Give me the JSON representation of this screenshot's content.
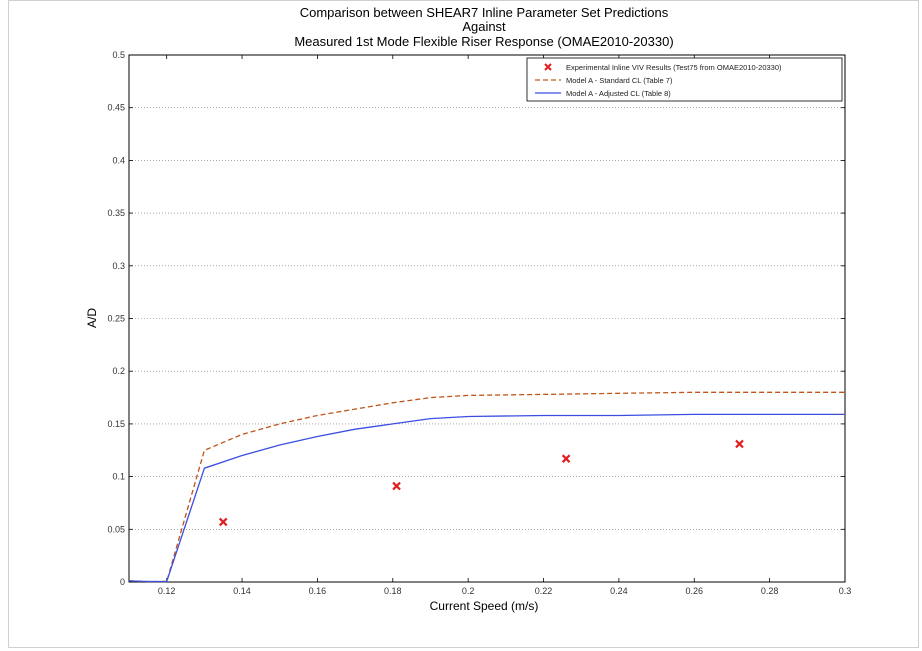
{
  "chart_data": {
    "type": "line",
    "title": [
      "Comparison between SHEAR7 Inline Parameter Set Predictions",
      "Against",
      "Measured 1st Mode Flexible Riser Response (OMAE2010-20330)"
    ],
    "xlabel": "Current Speed (m/s)",
    "ylabel": "A/D",
    "xlim": [
      0.11,
      0.3
    ],
    "ylim": [
      0,
      0.5
    ],
    "xticks": [
      "0.12",
      "0.14",
      "0.16",
      "0.18",
      "0.2",
      "0.22",
      "0.24",
      "0.26",
      "0.28",
      "0.3"
    ],
    "yticks": [
      "0",
      "0.05",
      "0.1",
      "0.15",
      "0.2",
      "0.25",
      "0.3",
      "0.35",
      "0.4",
      "0.45",
      "0.5"
    ],
    "grid": true,
    "legend_position": "top-right",
    "series": [
      {
        "name": "Experimental Inline VIV Results (Test75 from OMAE2010-20330)",
        "kind": "scatter",
        "marker": "x",
        "color": "#e02020",
        "x": [
          0.135,
          0.181,
          0.226,
          0.272
        ],
        "y": [
          0.057,
          0.091,
          0.117,
          0.131
        ]
      },
      {
        "name": "Model A - Standard CL (Table 7)",
        "kind": "line",
        "style": "dashed",
        "color": "#c0541a",
        "x": [
          0.11,
          0.115,
          0.12,
          0.13,
          0.14,
          0.15,
          0.16,
          0.17,
          0.18,
          0.19,
          0.2,
          0.22,
          0.24,
          0.26,
          0.28,
          0.3
        ],
        "y": [
          0.001,
          0.0005,
          0.0005,
          0.125,
          0.14,
          0.15,
          0.158,
          0.164,
          0.17,
          0.175,
          0.177,
          0.178,
          0.179,
          0.18,
          0.18,
          0.18
        ]
      },
      {
        "name": "Model A - Adjusted CL (Table 8)",
        "kind": "line",
        "style": "solid",
        "color": "#3a4fe0",
        "x": [
          0.11,
          0.115,
          0.12,
          0.13,
          0.14,
          0.15,
          0.16,
          0.17,
          0.18,
          0.19,
          0.2,
          0.22,
          0.24,
          0.26,
          0.28,
          0.3
        ],
        "y": [
          0.001,
          0.0005,
          0.0005,
          0.108,
          0.12,
          0.13,
          0.138,
          0.145,
          0.15,
          0.155,
          0.157,
          0.158,
          0.158,
          0.159,
          0.159,
          0.159
        ]
      }
    ]
  }
}
